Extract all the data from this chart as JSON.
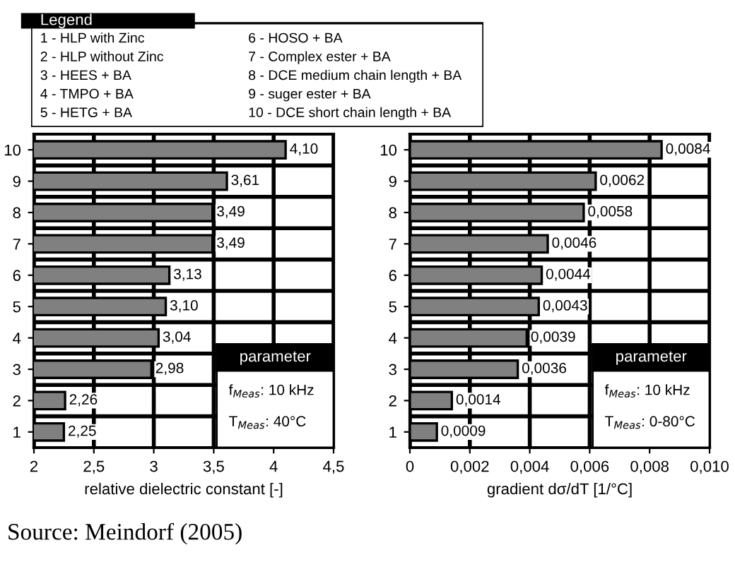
{
  "chart_data": [
    {
      "type": "bar",
      "orientation": "horizontal",
      "xlabel": "relative dielectric constant [-]",
      "categories": [
        "10",
        "9",
        "8",
        "7",
        "6",
        "5",
        "4",
        "3",
        "2",
        "1"
      ],
      "values": [
        4.1,
        3.61,
        3.49,
        3.49,
        3.13,
        3.1,
        3.04,
        2.98,
        2.26,
        2.25
      ],
      "value_labels": [
        "4,10",
        "3,61",
        "3,49",
        "3,49",
        "3,13",
        "3,10",
        "3,04",
        "2,98",
        "2,26",
        "2,25"
      ],
      "color": "#808080",
      "xlim": [
        2,
        4.5
      ],
      "xticks": [
        2,
        {
          "value": 2.5,
          "label": "2,5"
        },
        3,
        {
          "value": 3.5,
          "label": "3,5"
        },
        4,
        {
          "value": 4.5,
          "label": "4,5"
        }
      ],
      "grid": true,
      "annotations": [
        "Legend",
        "1 - HLP with Zinc",
        "2 - HLP without Zinc",
        "3 - HEES + BA",
        "4 - TMPO + BA",
        "5 - HETG + BA",
        "6 - HOSO + BA",
        "7 - Complex ester + BA",
        "8 - DCE medium chain length + BA",
        "9 - suger ester + BA",
        "10 - DCE short chain length + BA",
        "parameter",
        "f$_{Meas}$: 10 kHz",
        "T$_{Meas}$: 40°C"
      ]
    },
    {
      "type": "bar",
      "orientation": "horizontal",
      "xlabel": "gradient dσ/dT [1/°C]",
      "categories": [
        "10",
        "9",
        "8",
        "7",
        "6",
        "5",
        "4",
        "3",
        "2",
        "1"
      ],
      "values": [
        0.0084,
        0.0062,
        0.0058,
        0.0046,
        0.0044,
        0.0043,
        0.0039,
        0.0036,
        0.0014,
        0.0009
      ],
      "value_labels": [
        "0,0084",
        "0,0062",
        "0,0058",
        "0,0046",
        "0,0044",
        "0,0043",
        "0,0039",
        "0,0036",
        "0,0014",
        "0,0009"
      ],
      "color": "#808080",
      "xlim": [
        0,
        0.01
      ],
      "xticks": [
        0,
        {
          "value": 0.002,
          "label": "0,002"
        },
        {
          "value": 0.004,
          "label": "0,004"
        },
        {
          "value": 0.006,
          "label": "0,006"
        },
        {
          "value": 0.008,
          "label": "0,008"
        },
        {
          "value": 0.01,
          "label": "0,010"
        }
      ],
      "grid": true,
      "annotations": [
        "parameter",
        "f$_{Meas}$: 10 kHz",
        "T$_{Meas}$: 0-80°C",
        "Source: Meindorf (2005)"
      ]
    }
  ]
}
